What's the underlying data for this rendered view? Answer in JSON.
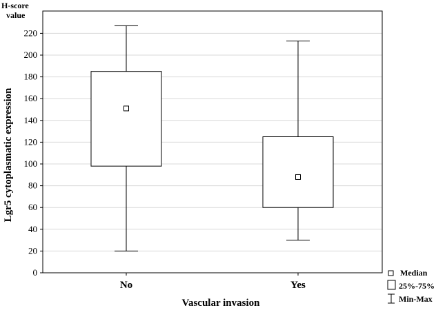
{
  "chart_data": {
    "type": "box",
    "unit_label_line1": "H-score",
    "unit_label_line2": "value",
    "ylabel": "Lgr5 cytoplasmatic expression",
    "xlabel": "Vascular invasion",
    "ylim": [
      0,
      230
    ],
    "yticks": [
      0,
      20,
      40,
      60,
      80,
      100,
      120,
      140,
      160,
      180,
      200,
      220
    ],
    "grid": true,
    "categories": [
      "No",
      "Yes"
    ],
    "boxes": [
      {
        "category": "No",
        "min": 20,
        "q1": 98,
        "median": 151,
        "q3": 185,
        "max": 227
      },
      {
        "category": "Yes",
        "min": 30,
        "q1": 60,
        "median": 88,
        "q3": 125,
        "max": 213
      }
    ],
    "legend": {
      "placement": "bottom-right",
      "median": "Median",
      "iqr": "25%-75%",
      "range": "Min-Max"
    }
  }
}
